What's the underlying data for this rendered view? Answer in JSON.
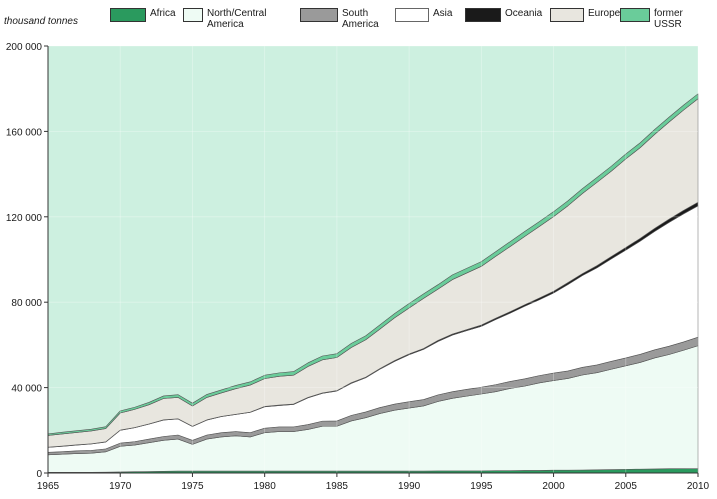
{
  "chart_data": {
    "type": "area",
    "stacked": true,
    "unit_label": "thousand tonnes",
    "title": "",
    "xlabel": "",
    "ylabel": "",
    "xlim": [
      1965,
      2010
    ],
    "ylim": [
      0,
      200000
    ],
    "x_ticks": [
      "1965",
      "1970",
      "1975",
      "1980",
      "1985",
      "1990",
      "1995",
      "2000",
      "2005",
      "2010"
    ],
    "y_ticks": [
      "0",
      "40 000",
      "80 000",
      "120 000",
      "160 000",
      "200 000"
    ],
    "grid": true,
    "legend_position": "top",
    "background_color": "#cdf0e0",
    "x": [
      1965,
      1966,
      1967,
      1968,
      1969,
      1970,
      1971,
      1972,
      1973,
      1974,
      1975,
      1976,
      1977,
      1978,
      1979,
      1980,
      1981,
      1982,
      1983,
      1984,
      1985,
      1986,
      1987,
      1988,
      1989,
      1990,
      1991,
      1992,
      1993,
      1994,
      1995,
      1996,
      1997,
      1998,
      1999,
      2000,
      2001,
      2002,
      2003,
      2004,
      2005,
      2006,
      2007,
      2008,
      2009,
      2010
    ],
    "series": [
      {
        "name": "Africa",
        "color": "#2a9a5e",
        "values": [
          300,
          300,
          300,
          300,
          400,
          500,
          600,
          700,
          800,
          900,
          900,
          900,
          900,
          900,
          900,
          900,
          900,
          900,
          900,
          900,
          900,
          900,
          900,
          900,
          900,
          900,
          900,
          1000,
          1000,
          1000,
          1000,
          1100,
          1100,
          1200,
          1200,
          1300,
          1300,
          1400,
          1500,
          1600,
          1700,
          1800,
          1900,
          2000,
          2000,
          2100
        ]
      },
      {
        "name": "North/Central\nAmerica",
        "color": "#eefbf4",
        "values": [
          8200,
          8500,
          8800,
          9000,
          9500,
          12000,
          12500,
          13500,
          14500,
          15000,
          12500,
          15000,
          16000,
          16500,
          16000,
          18000,
          18500,
          18500,
          19500,
          21000,
          21000,
          23500,
          25000,
          27000,
          28500,
          29500,
          30500,
          32500,
          34000,
          35000,
          36000,
          37000,
          38500,
          39500,
          41000,
          42000,
          43000,
          44500,
          45500,
          47000,
          48500,
          50000,
          52000,
          53500,
          55500,
          57500
        ]
      },
      {
        "name": "South\nAmerica",
        "color": "#9a9a9a",
        "values": [
          1200,
          1200,
          1300,
          1300,
          1400,
          1500,
          1600,
          1700,
          1800,
          1900,
          1900,
          1900,
          2000,
          2000,
          2000,
          2100,
          2200,
          2200,
          2300,
          2400,
          2500,
          2600,
          2700,
          2800,
          2900,
          3000,
          3000,
          3100,
          3100,
          3200,
          3200,
          3300,
          3300,
          3400,
          3400,
          3500,
          3500,
          3600,
          3600,
          3700,
          3700,
          3800,
          3800,
          3900,
          3900,
          4000
        ]
      },
      {
        "name": "Asia",
        "color": "#ffffff",
        "values": [
          2300,
          2500,
          2700,
          3000,
          3200,
          6000,
          6500,
          7000,
          7700,
          7500,
          6500,
          7000,
          7500,
          8000,
          9500,
          10000,
          10000,
          10500,
          12500,
          13000,
          14000,
          15000,
          16000,
          18000,
          20000,
          22000,
          23500,
          25000,
          26500,
          27500,
          28500,
          30500,
          32000,
          34000,
          35500,
          37500,
          40500,
          43000,
          45500,
          48000,
          50500,
          53000,
          55500,
          58000,
          60000,
          61500
        ]
      },
      {
        "name": "Oceania",
        "color": "#1a1a1a",
        "values": [
          100,
          100,
          100,
          100,
          100,
          100,
          100,
          100,
          100,
          100,
          100,
          100,
          100,
          100,
          100,
          200,
          200,
          200,
          200,
          200,
          200,
          300,
          300,
          300,
          400,
          400,
          400,
          500,
          500,
          500,
          600,
          600,
          700,
          700,
          800,
          800,
          900,
          900,
          1000,
          1100,
          1200,
          1300,
          1400,
          1500,
          1600,
          1700
        ]
      },
      {
        "name": "Europe",
        "color": "#e8e6df",
        "values": [
          5500,
          5700,
          5800,
          6000,
          6200,
          8000,
          8500,
          9000,
          10000,
          10000,
          9500,
          10500,
          11000,
          12000,
          12700,
          13000,
          13500,
          13500,
          14500,
          15500,
          15500,
          16500,
          17500,
          18500,
          20000,
          21500,
          23500,
          24000,
          25500,
          26500,
          27500,
          29000,
          30500,
          32000,
          33500,
          35000,
          36000,
          37500,
          39000,
          40000,
          41500,
          42500,
          44000,
          45500,
          47000,
          48500
        ]
      },
      {
        "name": "former\nUSSR",
        "color": "#6acc9a",
        "values": [
          700,
          800,
          800,
          800,
          900,
          1000,
          1000,
          1100,
          1200,
          1300,
          1300,
          1400,
          1400,
          1500,
          1500,
          1600,
          1600,
          1700,
          1700,
          1800,
          1800,
          1900,
          1900,
          2000,
          2000,
          2100,
          2100,
          2100,
          2200,
          2200,
          2200,
          2200,
          2300,
          2300,
          2300,
          2300,
          2300,
          2300,
          2300,
          2300,
          2300,
          2300,
          2300,
          2300,
          2300,
          2300
        ]
      }
    ]
  }
}
